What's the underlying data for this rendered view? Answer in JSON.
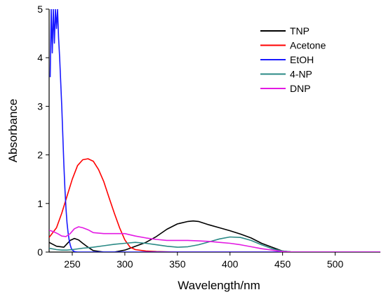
{
  "chart_data": {
    "type": "line",
    "title": "",
    "xlabel": "Wavelength/nm",
    "ylabel": "Absorbance",
    "xlim": [
      228,
      543
    ],
    "ylim": [
      0,
      5
    ],
    "xticks": [
      250,
      300,
      350,
      400,
      450,
      500
    ],
    "yticks": [
      0,
      1,
      2,
      3,
      4,
      5
    ],
    "grid": false,
    "legend_position": "top-right",
    "series": [
      {
        "name": "TNP",
        "color": "#000000",
        "x": [
          228,
          235,
          242,
          248,
          252,
          256,
          260,
          265,
          270,
          280,
          290,
          300,
          310,
          320,
          330,
          340,
          350,
          360,
          365,
          370,
          380,
          390,
          400,
          410,
          420,
          430,
          440,
          450,
          460,
          500,
          543
        ],
        "y": [
          0.2,
          0.12,
          0.1,
          0.24,
          0.28,
          0.25,
          0.18,
          0.1,
          0.03,
          0.0,
          0.0,
          0.04,
          0.12,
          0.2,
          0.32,
          0.47,
          0.58,
          0.63,
          0.64,
          0.63,
          0.56,
          0.5,
          0.44,
          0.37,
          0.29,
          0.18,
          0.1,
          0.02,
          0.0,
          0.0,
          0.0
        ]
      },
      {
        "name": "Acetone",
        "color": "#ff0000",
        "x": [
          228,
          235,
          240,
          245,
          250,
          255,
          260,
          265,
          270,
          275,
          280,
          285,
          290,
          295,
          300,
          305,
          310,
          320,
          330,
          350,
          400,
          450,
          500,
          543
        ],
        "y": [
          0.3,
          0.5,
          0.8,
          1.15,
          1.5,
          1.78,
          1.9,
          1.92,
          1.87,
          1.7,
          1.45,
          1.12,
          0.8,
          0.5,
          0.25,
          0.1,
          0.05,
          0.02,
          0.01,
          0.0,
          0.0,
          0.0,
          0.0,
          0.0
        ]
      },
      {
        "name": "EtOH",
        "color": "#1a1aff",
        "x": [
          229,
          230,
          231,
          232,
          233,
          234,
          235,
          236,
          237,
          238,
          239,
          240,
          241,
          242,
          243,
          244,
          245,
          246,
          247,
          248,
          249,
          250,
          252,
          255,
          260,
          300,
          400,
          543
        ],
        "y": [
          3.6,
          5.0,
          4.1,
          5.0,
          4.3,
          5.0,
          4.6,
          5.0,
          4.4,
          4.0,
          3.5,
          3.0,
          2.4,
          1.8,
          1.3,
          0.9,
          0.6,
          0.4,
          0.25,
          0.15,
          0.08,
          0.04,
          0.01,
          0.0,
          0.0,
          0.0,
          0.0,
          0.0
        ]
      },
      {
        "name": "4-NP",
        "color": "#2a8a86",
        "x": [
          228,
          235,
          240,
          245,
          250,
          260,
          270,
          280,
          290,
          300,
          310,
          320,
          330,
          340,
          350,
          360,
          370,
          380,
          390,
          400,
          410,
          420,
          430,
          440,
          450,
          455,
          460,
          500,
          543
        ],
        "y": [
          0.08,
          0.05,
          0.04,
          0.04,
          0.05,
          0.08,
          0.1,
          0.13,
          0.16,
          0.18,
          0.2,
          0.18,
          0.15,
          0.12,
          0.1,
          0.11,
          0.15,
          0.21,
          0.27,
          0.31,
          0.3,
          0.24,
          0.15,
          0.07,
          0.02,
          0.01,
          0.0,
          0.0,
          0.0
        ]
      },
      {
        "name": "DNP",
        "color": "#e31ae3",
        "x": [
          228,
          232,
          236,
          240,
          244,
          248,
          252,
          256,
          260,
          265,
          270,
          280,
          290,
          300,
          310,
          320,
          330,
          340,
          350,
          360,
          370,
          380,
          390,
          400,
          410,
          420,
          430,
          440,
          450,
          460,
          500,
          543
        ],
        "y": [
          0.45,
          0.42,
          0.38,
          0.33,
          0.32,
          0.38,
          0.48,
          0.52,
          0.5,
          0.46,
          0.4,
          0.38,
          0.38,
          0.38,
          0.33,
          0.29,
          0.26,
          0.24,
          0.24,
          0.24,
          0.23,
          0.22,
          0.2,
          0.18,
          0.15,
          0.11,
          0.07,
          0.04,
          0.01,
          0.0,
          0.0,
          0.0
        ]
      }
    ]
  }
}
